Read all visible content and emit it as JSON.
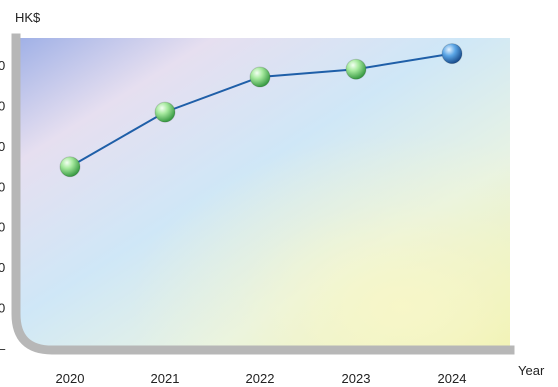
{
  "chart_data": {
    "type": "line",
    "title": "",
    "ylabel": "HK$",
    "xlabel": "Year",
    "categories": [
      "2020",
      "2021",
      "2022",
      "2023",
      "2024"
    ],
    "series": [
      {
        "values": [
          47,
          61,
          70,
          72,
          76
        ],
        "marker_colors": [
          "#6cc66c",
          "#6cc66c",
          "#6cc66c",
          "#6cc66c",
          "#2f7fc6"
        ]
      }
    ],
    "ylim": [
      0,
      80
    ],
    "y_ticks": [
      "0",
      "0",
      "0",
      "0",
      "0",
      "0",
      "0",
      "–"
    ],
    "colors": {
      "line": "#1f5fa8",
      "frame": "#b7b7b7"
    }
  }
}
